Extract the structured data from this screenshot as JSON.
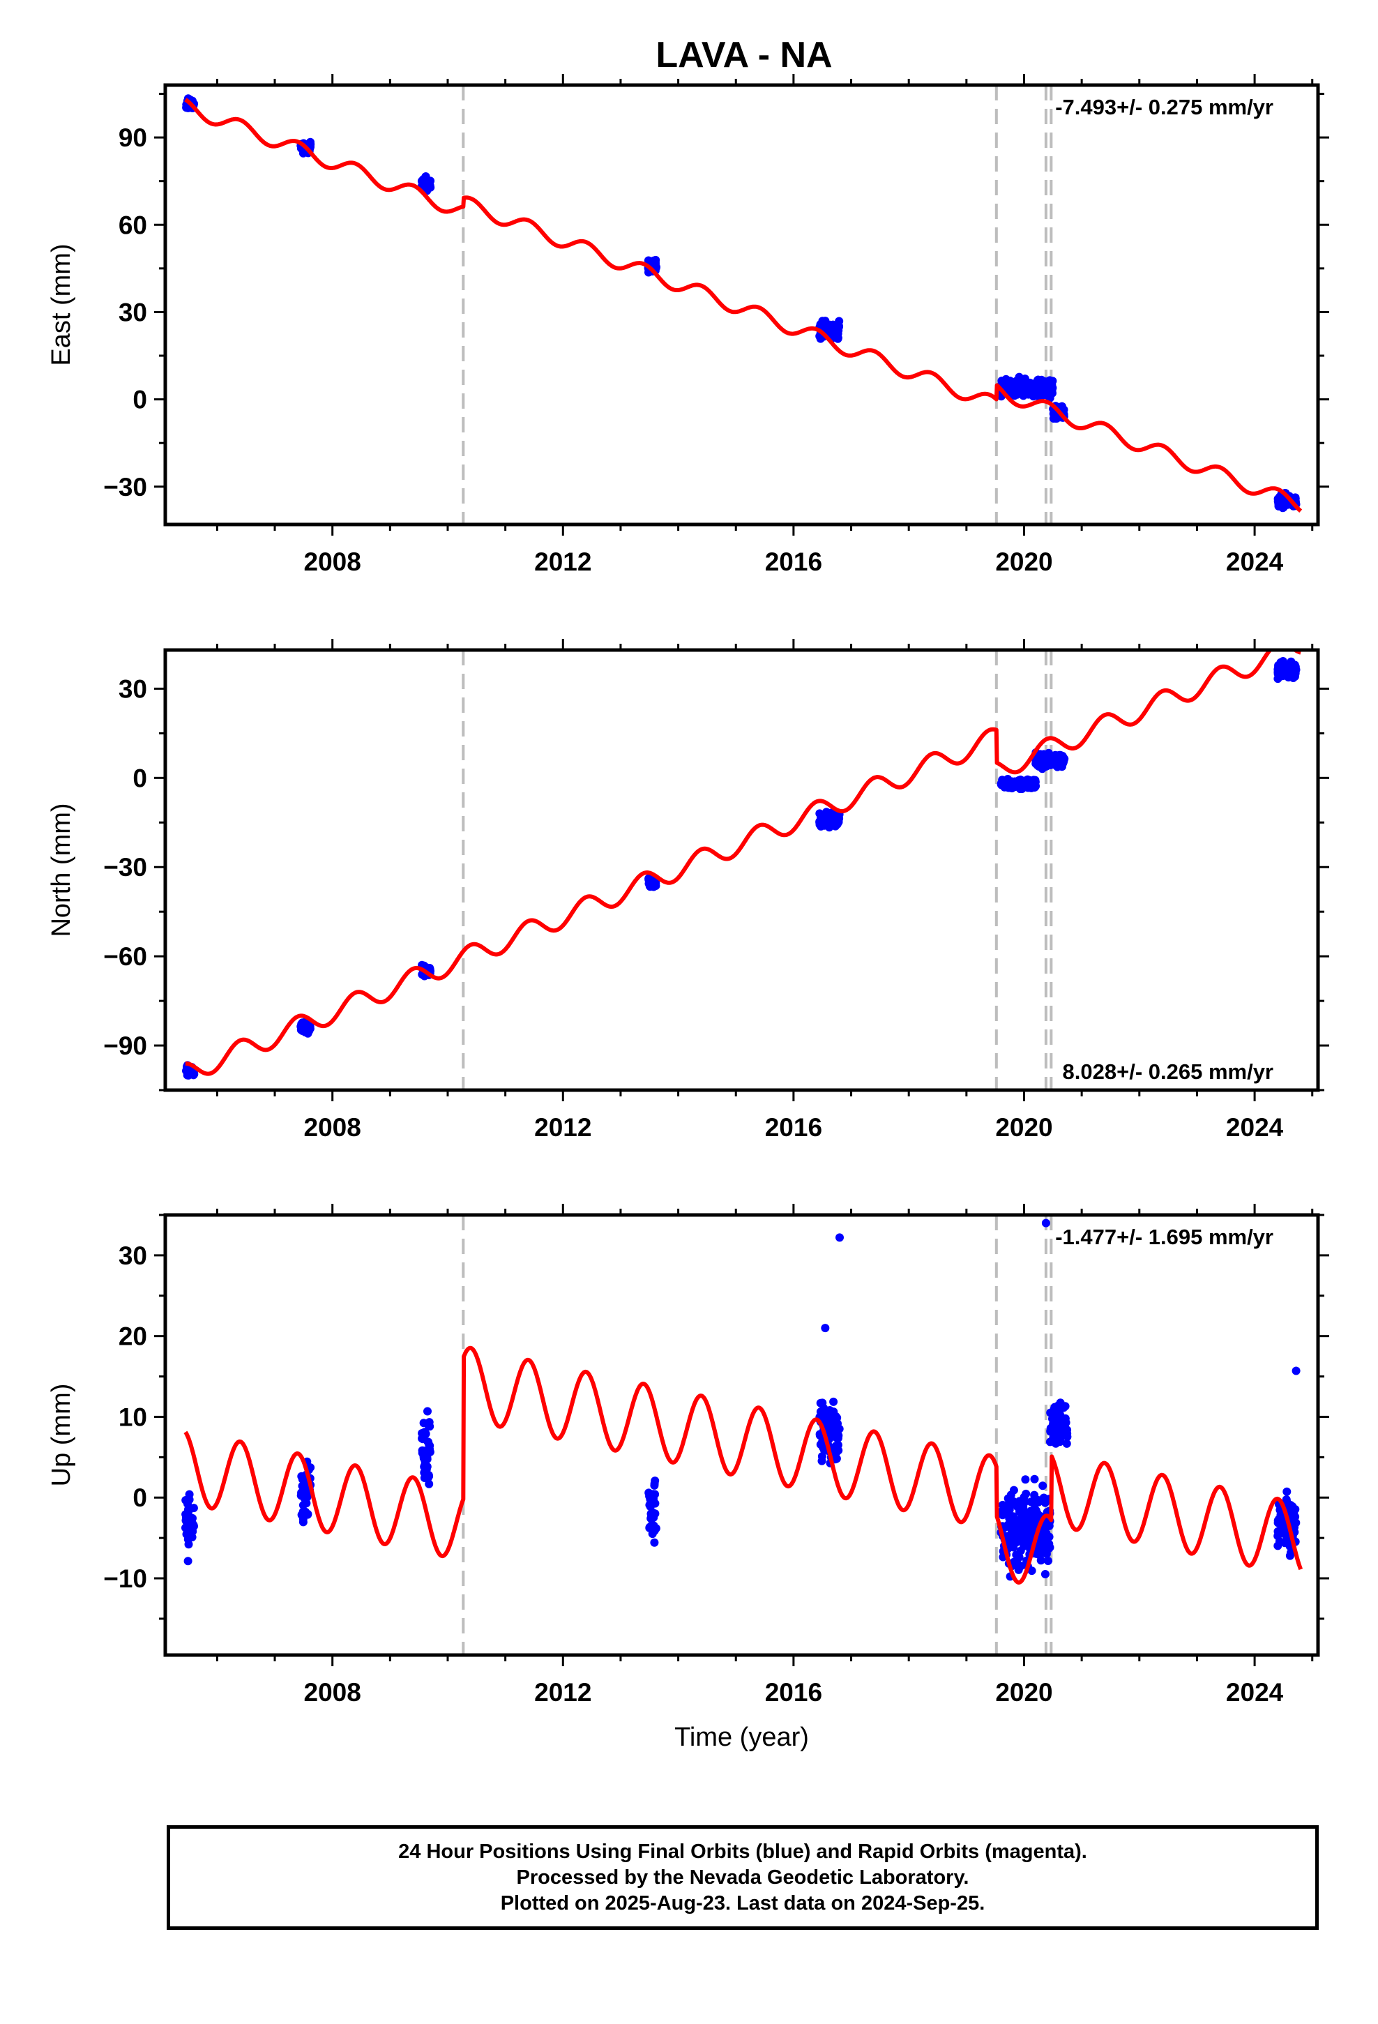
{
  "figure_title": "LAVA - NA",
  "footer": {
    "line1": "24 Hour Positions Using Final Orbits (blue) and Rapid Orbits (magenta).",
    "line2": "Processed by the Nevada Geodetic Laboratory.",
    "line3": "Plotted on 2025-Aug-23. Last data on 2024-Sep-25."
  },
  "colors": {
    "observations": "#0000ff",
    "model": "#ff0000",
    "event_lines": "#bdbdbd",
    "frame": "#000000"
  },
  "chart_data": [
    {
      "type": "scatter",
      "title": "LAVA - NA",
      "ylabel": "East (mm)",
      "xlabel": "",
      "xlim": [
        2005.1,
        2025.1
      ],
      "ylim": [
        -43,
        108
      ],
      "xticks": [
        2008,
        2012,
        2016,
        2020,
        2024
      ],
      "yticks": [
        -30,
        0,
        30,
        60,
        90
      ],
      "grid": false,
      "rate_label": "-7.493+/- 0.275 mm/yr",
      "rate_position": "top-right",
      "event_lines": [
        2010.27,
        2019.52,
        2020.38,
        2020.47
      ],
      "model": {
        "name": "model",
        "rate": -7.493,
        "intercept_2005": 104,
        "seasonal_amplitude": 2.5,
        "steps": [
          {
            "at": 2010.27,
            "offset": 3
          },
          {
            "at": 2019.52,
            "offset": 5
          }
        ]
      },
      "observation_clusters": [
        {
          "start": 2005.45,
          "end": 2005.6,
          "center": 101.5,
          "spread": 3
        },
        {
          "start": 2007.45,
          "end": 2007.62,
          "center": 86.5,
          "spread": 3
        },
        {
          "start": 2009.55,
          "end": 2009.7,
          "center": 74,
          "spread": 4
        },
        {
          "start": 2013.48,
          "end": 2013.62,
          "center": 46,
          "spread": 4
        },
        {
          "start": 2016.45,
          "end": 2016.8,
          "center": 24,
          "spread": 5
        },
        {
          "start": 2019.6,
          "end": 2020.5,
          "center": 4,
          "spread": 5
        },
        {
          "start": 2020.5,
          "end": 2020.7,
          "center": -5,
          "spread": 4
        },
        {
          "start": 2024.4,
          "end": 2024.72,
          "center": -35,
          "spread": 4
        }
      ]
    },
    {
      "type": "scatter",
      "title": "",
      "ylabel": "North (mm)",
      "xlabel": "",
      "xlim": [
        2005.1,
        2025.1
      ],
      "ylim": [
        -105,
        43
      ],
      "xticks": [
        2008,
        2012,
        2016,
        2020,
        2024
      ],
      "yticks": [
        -90,
        -60,
        -30,
        0,
        30
      ],
      "grid": false,
      "rate_label": "8.028+/- 0.265 mm/yr",
      "rate_position": "bottom-right",
      "event_lines": [
        2010.27,
        2019.52,
        2020.38,
        2020.47
      ],
      "model": {
        "name": "model",
        "rate": 8.028,
        "intercept_2005": -103,
        "seasonal_amplitude": 3.5,
        "steps": [
          {
            "at": 2019.52,
            "offset": -11
          }
        ]
      },
      "observation_clusters": [
        {
          "start": 2005.45,
          "end": 2005.6,
          "center": -98.5,
          "spread": 3
        },
        {
          "start": 2007.45,
          "end": 2007.62,
          "center": -84,
          "spread": 3
        },
        {
          "start": 2009.55,
          "end": 2009.7,
          "center": -65,
          "spread": 3
        },
        {
          "start": 2013.48,
          "end": 2013.62,
          "center": -35,
          "spread": 3
        },
        {
          "start": 2016.45,
          "end": 2016.8,
          "center": -14,
          "spread": 4
        },
        {
          "start": 2019.6,
          "end": 2020.2,
          "center": -2,
          "spread": 3
        },
        {
          "start": 2020.2,
          "end": 2020.7,
          "center": 6,
          "spread": 4
        },
        {
          "start": 2024.4,
          "end": 2024.72,
          "center": 36,
          "spread": 4
        }
      ]
    },
    {
      "type": "scatter",
      "title": "",
      "ylabel": "Up (mm)",
      "xlabel": "Time (year)",
      "xlim": [
        2005.1,
        2025.1
      ],
      "ylim": [
        -19.5,
        35
      ],
      "xticks": [
        2008,
        2012,
        2016,
        2020,
        2024
      ],
      "yticks": [
        -10,
        0,
        10,
        20,
        30
      ],
      "grid": false,
      "rate_label": "-1.477+/- 1.695 mm/yr",
      "rate_position": "top-right",
      "event_lines": [
        2010.27,
        2019.52,
        2020.38,
        2020.47
      ],
      "model": {
        "name": "model",
        "rate": -1.477,
        "intercept_2005": 4.5,
        "seasonal_amplitude": 4.5,
        "steps": [
          {
            "at": 2010.27,
            "offset": 17.5
          },
          {
            "at": 2019.52,
            "offset": -6
          },
          {
            "at": 2020.47,
            "offset": 8
          }
        ]
      },
      "observation_clusters": [
        {
          "start": 2005.45,
          "end": 2005.6,
          "center": -3,
          "spread": 7
        },
        {
          "start": 2007.45,
          "end": 2007.62,
          "center": 1,
          "spread": 6
        },
        {
          "start": 2009.55,
          "end": 2009.7,
          "center": 6,
          "spread": 7
        },
        {
          "start": 2013.48,
          "end": 2013.62,
          "center": -1,
          "spread": 7
        },
        {
          "start": 2016.45,
          "end": 2016.8,
          "center": 8,
          "spread": 7
        },
        {
          "start": 2019.6,
          "end": 2020.45,
          "center": -4,
          "spread": 8
        },
        {
          "start": 2020.45,
          "end": 2020.75,
          "center": 9,
          "spread": 5
        },
        {
          "start": 2024.4,
          "end": 2024.72,
          "center": -3,
          "spread": 6
        }
      ],
      "outliers": [
        [
          2016.8,
          32.2
        ],
        [
          2020.38,
          34
        ],
        [
          2024.72,
          15.7
        ],
        [
          2016.55,
          21
        ]
      ]
    }
  ]
}
